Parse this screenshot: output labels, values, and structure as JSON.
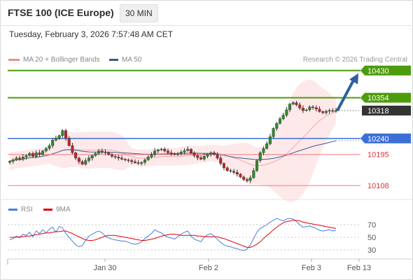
{
  "header": {
    "title": "FTSE 100 (ICE Europe)",
    "timeframe": "30 MIN",
    "datetime": "Tuesday, February 3, 2026 7:57:48 AM CET",
    "credit": "Research © 2026 Trading Central"
  },
  "colors": {
    "resistance": "#4d9c0e",
    "pivot": "#3b6fd6",
    "support": "#f07a80",
    "last": "#333333",
    "arrow": "#2e5f9e",
    "ma20": "#f4a5a8",
    "ma50": "#3b5c8c",
    "rsi": "#4a7fd4",
    "rsi_ma": "#e0000f"
  },
  "chart_data": [
    {
      "type": "candlestick",
      "legend": [
        "MA 20 + Bollinger Bands",
        "MA 50"
      ],
      "x_labels": [
        "Jan 30",
        "Feb 2",
        "Feb 3",
        "Feb 13"
      ],
      "ylim": [
        10075,
        10455
      ],
      "levels": [
        {
          "value": 10430,
          "label": "10430",
          "kind": "resistance"
        },
        {
          "value": 10354,
          "label": "10354",
          "kind": "resistance"
        },
        {
          "value": 10318,
          "label": "10318",
          "kind": "last"
        },
        {
          "value": 10240,
          "label": "10240",
          "kind": "pivot"
        },
        {
          "value": 10195,
          "label": "10195",
          "kind": "support"
        },
        {
          "value": 10108,
          "label": "10108",
          "kind": "support"
        }
      ],
      "target": 10430,
      "closes": [
        10176,
        10180,
        10185,
        10182,
        10188,
        10192,
        10198,
        10190,
        10200,
        10195,
        10205,
        10212,
        10220,
        10235,
        10240,
        10248,
        10262,
        10240,
        10220,
        10200,
        10185,
        10175,
        10168,
        10178,
        10185,
        10192,
        10198,
        10205,
        10202,
        10200,
        10195,
        10190,
        10188,
        10185,
        10182,
        10180,
        10178,
        10175,
        10172,
        10170,
        10173,
        10180,
        10188,
        10195,
        10205,
        10208,
        10210,
        10205,
        10200,
        10198,
        10195,
        10198,
        10202,
        10206,
        10210,
        10200,
        10192,
        10186,
        10182,
        10190,
        10196,
        10200,
        10195,
        10185,
        10170,
        10158,
        10150,
        10148,
        10145,
        10140,
        10132,
        10125,
        10122,
        10130,
        10150,
        10178,
        10200,
        10212,
        10225,
        10245,
        10268,
        10282,
        10295,
        10305,
        10320,
        10336,
        10340,
        10334,
        10325,
        10318,
        10320,
        10328,
        10326,
        10322,
        10315,
        10312,
        10316,
        10318,
        10316,
        10318
      ]
    },
    {
      "type": "line",
      "legend": [
        "RSI",
        "9MA"
      ],
      "tick_labels": [
        "70",
        "50",
        "30"
      ],
      "ylim": [
        20,
        80
      ],
      "rsi": [
        46,
        48,
        52,
        49,
        55,
        53,
        58,
        51,
        60,
        56,
        62,
        57,
        63,
        66,
        58,
        67,
        65,
        56,
        50,
        44,
        38,
        35,
        37,
        45,
        52,
        55,
        58,
        60,
        57,
        52,
        49,
        47,
        46,
        45,
        44,
        44,
        42,
        40,
        39,
        40,
        43,
        48,
        52,
        56,
        62,
        59,
        57,
        53,
        50,
        49,
        47,
        51,
        55,
        58,
        60,
        52,
        47,
        45,
        43,
        50,
        54,
        56,
        52,
        47,
        42,
        38,
        36,
        35,
        33,
        32,
        30,
        29,
        31,
        38,
        48,
        58,
        64,
        67,
        70,
        74,
        77,
        80,
        78,
        76,
        79,
        80,
        79,
        75,
        70,
        66,
        67,
        68,
        66,
        64,
        61,
        60,
        61,
        62,
        60,
        61
      ],
      "ma": [
        50,
        50,
        50,
        51,
        51,
        52,
        52,
        53,
        54,
        55,
        56,
        57,
        57,
        58,
        59,
        59,
        60,
        60,
        58,
        56,
        53,
        51,
        48,
        46,
        45,
        45,
        46,
        48,
        50,
        52,
        53,
        53,
        53,
        52,
        51,
        50,
        49,
        48,
        47,
        46,
        45,
        45,
        46,
        47,
        48,
        50,
        52,
        53,
        54,
        55,
        55,
        54,
        53,
        53,
        53,
        53,
        53,
        52,
        52,
        51,
        51,
        51,
        51,
        51,
        49,
        48,
        46,
        44,
        42,
        40,
        38,
        36,
        34,
        34,
        36,
        39,
        43,
        48,
        53,
        57,
        62,
        66,
        70,
        73,
        75,
        76,
        77,
        77,
        76,
        74,
        73,
        72,
        71,
        70,
        69,
        68,
        67,
        66,
        65,
        64
      ]
    }
  ]
}
